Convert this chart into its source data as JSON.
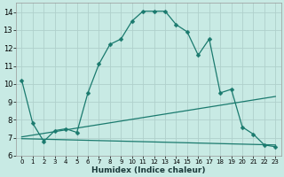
{
  "bg_color": "#c8eae4",
  "grid_color": "#b0d0cc",
  "line_color": "#1a7a6e",
  "xlabel": "Humidex (Indice chaleur)",
  "ylim": [
    6.0,
    14.5
  ],
  "xlim": [
    -0.5,
    23.5
  ],
  "yticks": [
    6,
    7,
    8,
    9,
    10,
    11,
    12,
    13,
    14
  ],
  "xticks": [
    0,
    1,
    2,
    3,
    4,
    5,
    6,
    7,
    8,
    9,
    10,
    11,
    12,
    13,
    14,
    15,
    16,
    17,
    18,
    19,
    20,
    21,
    22,
    23
  ],
  "main_x": [
    0,
    1,
    2,
    3,
    4,
    5,
    6,
    7,
    8,
    9,
    10,
    11,
    12,
    13,
    14,
    15,
    16,
    17,
    18,
    19,
    20,
    21,
    22,
    23
  ],
  "main_y": [
    10.2,
    7.8,
    6.8,
    7.4,
    7.5,
    7.3,
    9.5,
    11.1,
    12.2,
    12.5,
    13.5,
    14.05,
    14.05,
    14.05,
    13.3,
    12.9,
    11.6,
    12.5,
    9.5,
    9.7,
    7.6,
    7.2,
    6.6,
    6.5
  ],
  "line1_x": [
    0,
    23
  ],
  "line1_y": [
    7.05,
    9.3
  ],
  "line2_x": [
    0,
    23
  ],
  "line2_y": [
    6.95,
    6.6
  ],
  "markersize": 2.5,
  "linewidth": 0.9
}
